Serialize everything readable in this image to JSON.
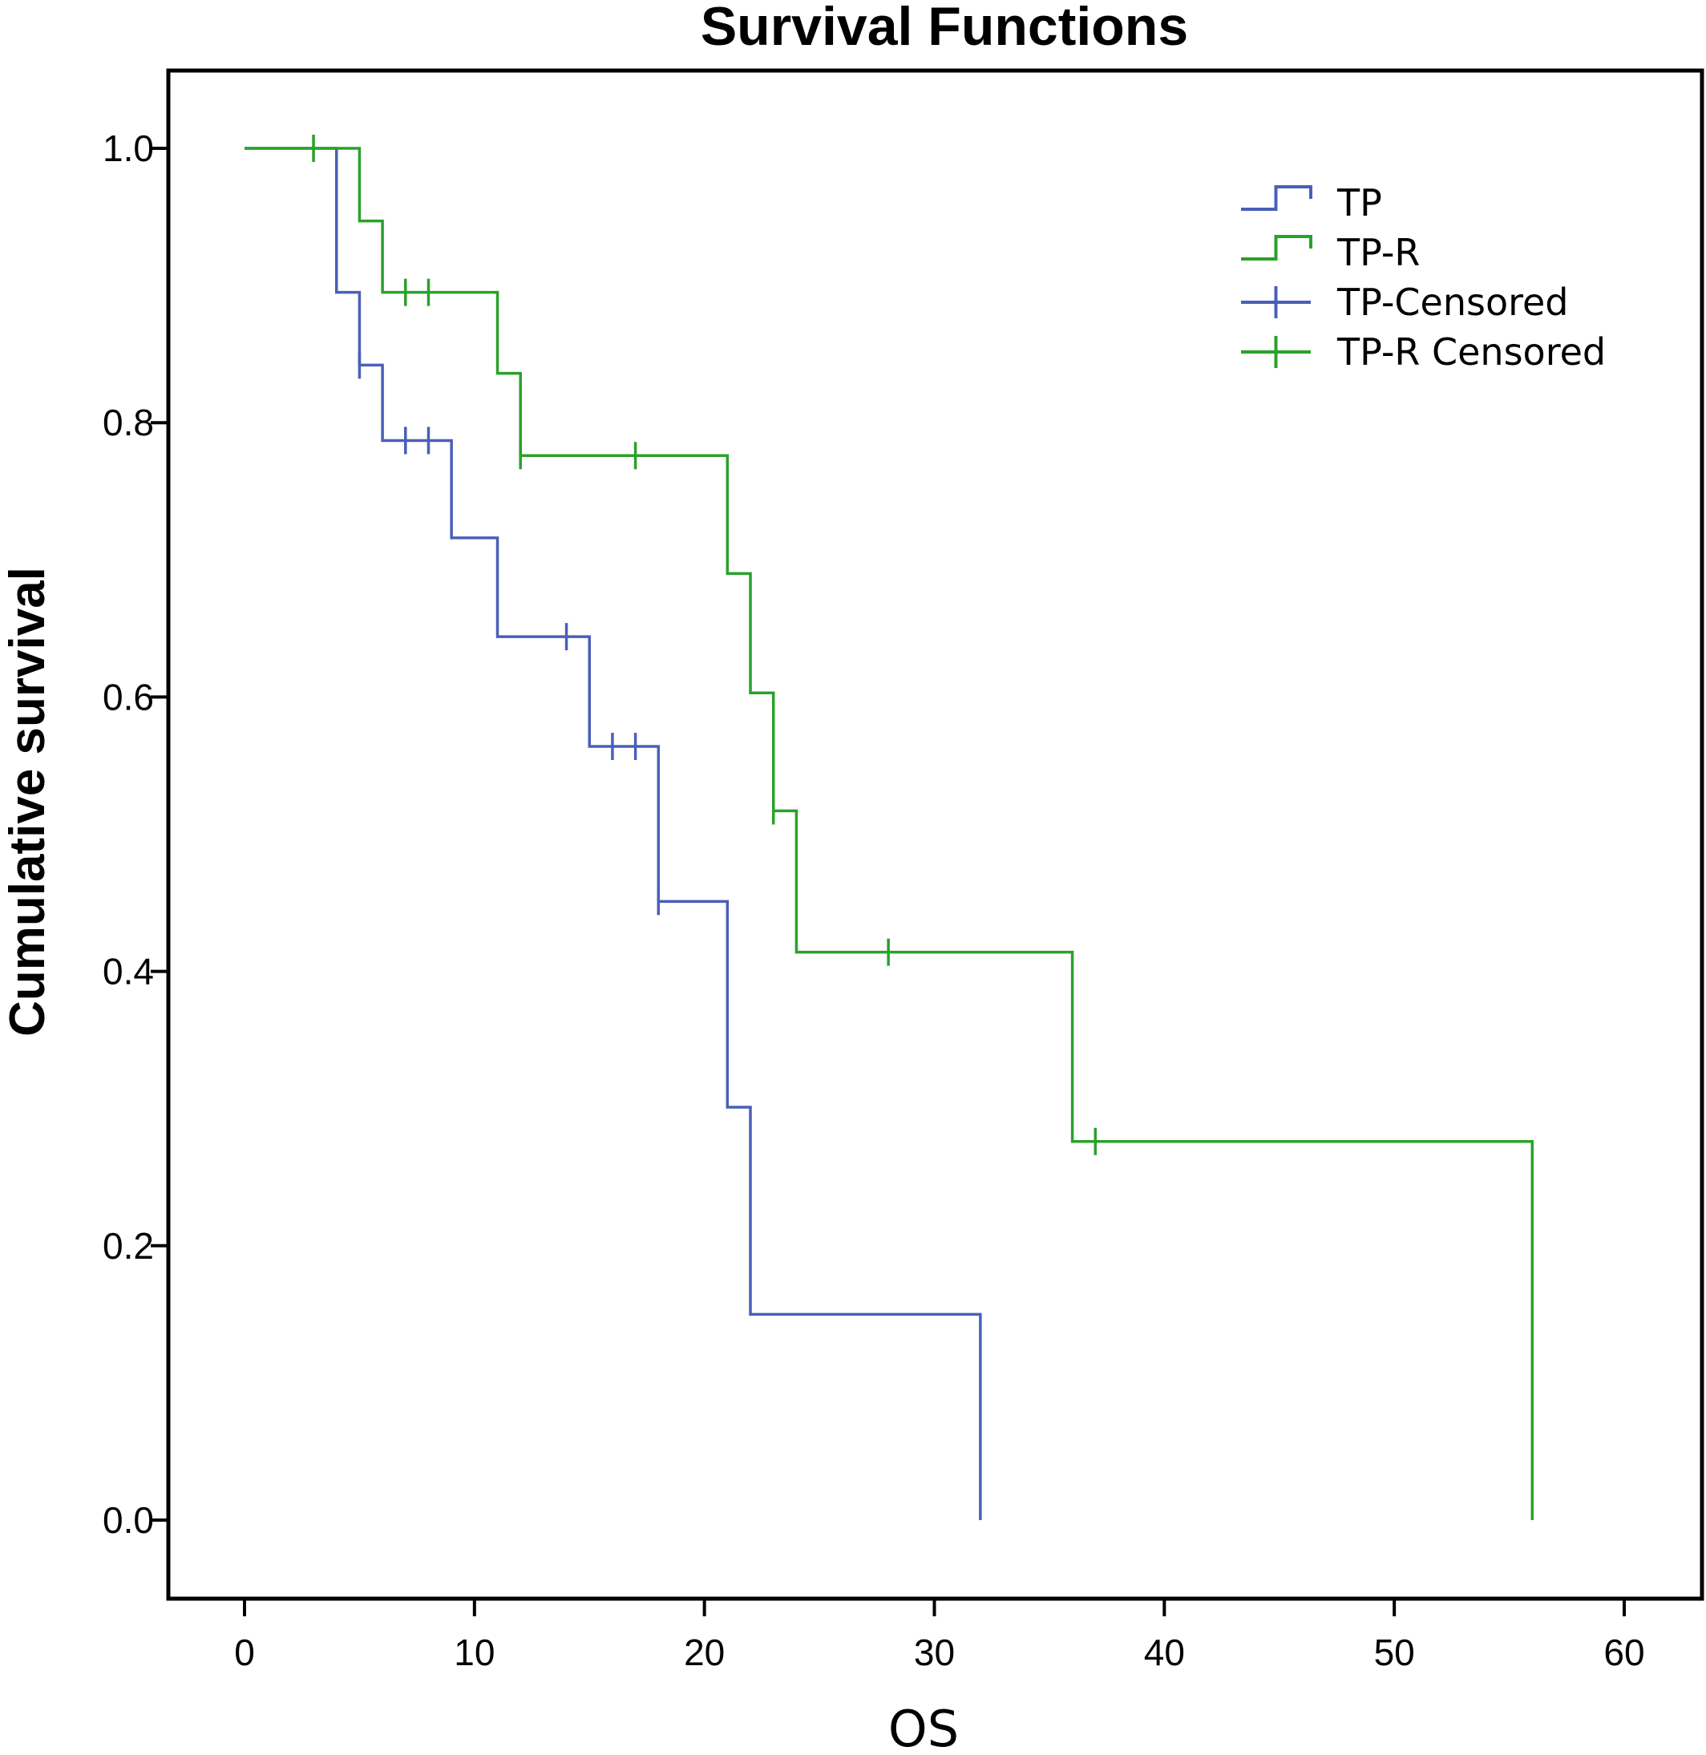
{
  "chart_data": {
    "type": "line",
    "title": "Survival Functions",
    "xlabel": "OS",
    "ylabel": "Cumulative survival",
    "xlim": [
      -3,
      63
    ],
    "ylim": [
      -0.05,
      1.06
    ],
    "xticks": [
      0,
      10,
      20,
      30,
      40,
      50,
      60
    ],
    "yticks": [
      0.0,
      0.2,
      0.4,
      0.6,
      0.8,
      1.0
    ],
    "xtick_labels": [
      "0",
      "10",
      "20",
      "30",
      "40",
      "50",
      "60"
    ],
    "ytick_labels": [
      "0.0",
      "0.2",
      "0.4",
      "0.6",
      "0.8",
      "1.0"
    ],
    "grid": false,
    "legend_position": "top-right",
    "legend": [
      "TP",
      "TP-R",
      "TP-Censored",
      "TP-R Censored"
    ],
    "series": [
      {
        "name": "TP",
        "color": "#4a5fb8",
        "step": true,
        "x": [
          0,
          4,
          5,
          6,
          9,
          11,
          15,
          18,
          21,
          22,
          32
        ],
        "y": [
          1.0,
          0.895,
          0.842,
          0.787,
          0.716,
          0.644,
          0.564,
          0.451,
          0.301,
          0.15,
          0.0
        ],
        "censored_x": [
          5,
          7,
          7,
          8,
          14,
          16,
          17,
          18
        ],
        "censored_y": [
          0.842,
          0.787,
          0.787,
          0.787,
          0.644,
          0.564,
          0.564,
          0.451
        ]
      },
      {
        "name": "TP-R",
        "color": "#2aa12a",
        "step": true,
        "x": [
          0,
          5,
          6,
          11,
          12,
          21,
          22,
          23,
          24,
          36,
          56
        ],
        "y": [
          1.0,
          0.947,
          0.895,
          0.836,
          0.776,
          0.69,
          0.603,
          0.517,
          0.414,
          0.276,
          0.0
        ],
        "censored_x": [
          3,
          7,
          8,
          12,
          17,
          23,
          28,
          37
        ],
        "censored_y": [
          1.0,
          0.895,
          0.895,
          0.776,
          0.776,
          0.517,
          0.414,
          0.276
        ]
      }
    ]
  }
}
